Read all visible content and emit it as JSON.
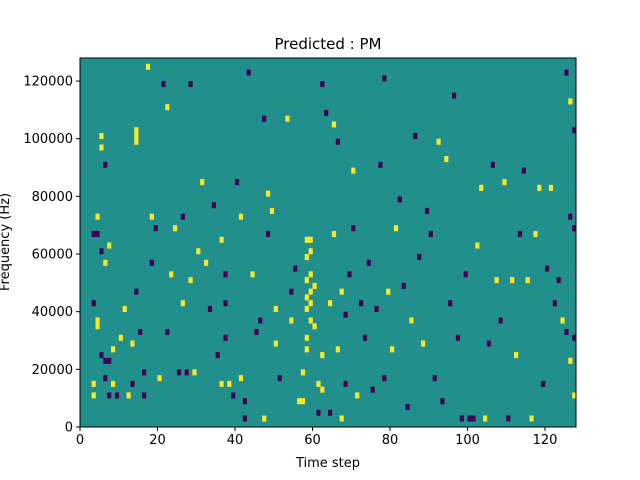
{
  "chart_data": {
    "type": "heatmap",
    "title": "Predicted : PM",
    "xlabel": "Time step",
    "ylabel": "Frequency (Hz)",
    "xlim": [
      0,
      128
    ],
    "ylim": [
      0,
      128000
    ],
    "x_ticks": [
      0,
      20,
      40,
      60,
      80,
      100,
      120
    ],
    "x_tick_labels": [
      "0",
      "20",
      "40",
      "60",
      "80",
      "100",
      "120"
    ],
    "y_ticks": [
      0,
      20000,
      40000,
      60000,
      80000,
      100000,
      120000
    ],
    "y_tick_labels": [
      "0",
      "20000",
      "40000",
      "60000",
      "80000",
      "100000",
      "120000"
    ],
    "colormap": "viridis",
    "value_levels": [
      -1,
      0,
      1
    ],
    "value_colors": {
      "-1": "#440154",
      "0": "#21908d",
      "1": "#fde725"
    },
    "background_value": 0,
    "time_steps": 128,
    "frequency_bins": 64,
    "bin_width_hz": 2000,
    "cells": [
      {
        "t": 5,
        "f": 100000,
        "v": 1
      },
      {
        "t": 5,
        "f": 96000,
        "v": 1
      },
      {
        "t": 6,
        "f": 90000,
        "v": -1
      },
      {
        "t": 4,
        "f": 72000,
        "v": 1
      },
      {
        "t": 3,
        "f": 66000,
        "v": -1
      },
      {
        "t": 4,
        "f": 66000,
        "v": -1
      },
      {
        "t": 7,
        "f": 62000,
        "v": 1
      },
      {
        "t": 5,
        "f": 60000,
        "v": -1
      },
      {
        "t": 6,
        "f": 56000,
        "v": 1
      },
      {
        "t": 3,
        "f": 42000,
        "v": -1
      },
      {
        "t": 4,
        "f": 36000,
        "v": 1
      },
      {
        "t": 4,
        "f": 34000,
        "v": 1
      },
      {
        "t": 5,
        "f": 24000,
        "v": -1
      },
      {
        "t": 6,
        "f": 22000,
        "v": -1
      },
      {
        "t": 7,
        "f": 22000,
        "v": -1
      },
      {
        "t": 8,
        "f": 26000,
        "v": 1
      },
      {
        "t": 3,
        "f": 14000,
        "v": 1
      },
      {
        "t": 3,
        "f": 10000,
        "v": 1
      },
      {
        "t": 6,
        "f": 16000,
        "v": -1
      },
      {
        "t": 7,
        "f": 10000,
        "v": -1
      },
      {
        "t": 8,
        "f": 14000,
        "v": 1
      },
      {
        "t": 9,
        "f": 10000,
        "v": -1
      },
      {
        "t": 10,
        "f": 30000,
        "v": 1
      },
      {
        "t": 11,
        "f": 40000,
        "v": 1
      },
      {
        "t": 12,
        "f": 10000,
        "v": 1
      },
      {
        "t": 13,
        "f": 14000,
        "v": -1
      },
      {
        "t": 13,
        "f": 28000,
        "v": 1
      },
      {
        "t": 14,
        "f": 102000,
        "v": 1
      },
      {
        "t": 14,
        "f": 100000,
        "v": 1
      },
      {
        "t": 14,
        "f": 98000,
        "v": 1
      },
      {
        "t": 14,
        "f": 46000,
        "v": -1
      },
      {
        "t": 15,
        "f": 32000,
        "v": -1
      },
      {
        "t": 16,
        "f": 10000,
        "v": -1
      },
      {
        "t": 16,
        "f": 18000,
        "v": -1
      },
      {
        "t": 17,
        "f": 124000,
        "v": 1
      },
      {
        "t": 18,
        "f": 56000,
        "v": -1
      },
      {
        "t": 18,
        "f": 72000,
        "v": 1
      },
      {
        "t": 19,
        "f": 68000,
        "v": -1
      },
      {
        "t": 20,
        "f": 16000,
        "v": 1
      },
      {
        "t": 21,
        "f": 118000,
        "v": -1
      },
      {
        "t": 22,
        "f": 32000,
        "v": -1
      },
      {
        "t": 22,
        "f": 110000,
        "v": 1
      },
      {
        "t": 23,
        "f": 52000,
        "v": 1
      },
      {
        "t": 24,
        "f": 68000,
        "v": 1
      },
      {
        "t": 25,
        "f": 18000,
        "v": -1
      },
      {
        "t": 26,
        "f": 72000,
        "v": -1
      },
      {
        "t": 26,
        "f": 42000,
        "v": 1
      },
      {
        "t": 27,
        "f": 18000,
        "v": -1
      },
      {
        "t": 28,
        "f": 118000,
        "v": -1
      },
      {
        "t": 28,
        "f": 50000,
        "v": 1
      },
      {
        "t": 29,
        "f": 18000,
        "v": 1
      },
      {
        "t": 30,
        "f": 60000,
        "v": 1
      },
      {
        "t": 31,
        "f": 84000,
        "v": 1
      },
      {
        "t": 32,
        "f": 56000,
        "v": 1
      },
      {
        "t": 33,
        "f": 40000,
        "v": -1
      },
      {
        "t": 34,
        "f": 76000,
        "v": -1
      },
      {
        "t": 35,
        "f": 24000,
        "v": -1
      },
      {
        "t": 36,
        "f": 14000,
        "v": 1
      },
      {
        "t": 36,
        "f": 64000,
        "v": 1
      },
      {
        "t": 37,
        "f": 52000,
        "v": -1
      },
      {
        "t": 37,
        "f": 42000,
        "v": -1
      },
      {
        "t": 37,
        "f": 30000,
        "v": -1
      },
      {
        "t": 38,
        "f": 14000,
        "v": 1
      },
      {
        "t": 39,
        "f": 10000,
        "v": -1
      },
      {
        "t": 40,
        "f": 84000,
        "v": -1
      },
      {
        "t": 41,
        "f": 72000,
        "v": 1
      },
      {
        "t": 41,
        "f": 16000,
        "v": 1
      },
      {
        "t": 42,
        "f": 8000,
        "v": -1
      },
      {
        "t": 42,
        "f": 2000,
        "v": -1
      },
      {
        "t": 43,
        "f": 122000,
        "v": -1
      },
      {
        "t": 44,
        "f": 52000,
        "v": 1
      },
      {
        "t": 45,
        "f": 32000,
        "v": -1
      },
      {
        "t": 46,
        "f": 36000,
        "v": -1
      },
      {
        "t": 47,
        "f": 106000,
        "v": -1
      },
      {
        "t": 47,
        "f": 2000,
        "v": 1
      },
      {
        "t": 48,
        "f": 80000,
        "v": 1
      },
      {
        "t": 48,
        "f": 66000,
        "v": -1
      },
      {
        "t": 49,
        "f": 74000,
        "v": 1
      },
      {
        "t": 50,
        "f": 40000,
        "v": 1
      },
      {
        "t": 50,
        "f": 28000,
        "v": 1
      },
      {
        "t": 51,
        "f": 16000,
        "v": -1
      },
      {
        "t": 53,
        "f": 106000,
        "v": 1
      },
      {
        "t": 54,
        "f": 46000,
        "v": -1
      },
      {
        "t": 54,
        "f": 36000,
        "v": 1
      },
      {
        "t": 55,
        "f": 54000,
        "v": -1
      },
      {
        "t": 56,
        "f": 8000,
        "v": 1
      },
      {
        "t": 57,
        "f": 18000,
        "v": 1
      },
      {
        "t": 57,
        "f": 8000,
        "v": 1
      },
      {
        "t": 58,
        "f": 64000,
        "v": 1
      },
      {
        "t": 58,
        "f": 58000,
        "v": 1
      },
      {
        "t": 58,
        "f": 50000,
        "v": 1
      },
      {
        "t": 58,
        "f": 44000,
        "v": 1
      },
      {
        "t": 58,
        "f": 40000,
        "v": 1
      },
      {
        "t": 58,
        "f": 30000,
        "v": 1
      },
      {
        "t": 58,
        "f": 26000,
        "v": 1
      },
      {
        "t": 59,
        "f": 64000,
        "v": 1
      },
      {
        "t": 59,
        "f": 60000,
        "v": 1
      },
      {
        "t": 59,
        "f": 52000,
        "v": 1
      },
      {
        "t": 59,
        "f": 46000,
        "v": 1
      },
      {
        "t": 59,
        "f": 42000,
        "v": 1
      },
      {
        "t": 59,
        "f": 36000,
        "v": 1
      },
      {
        "t": 60,
        "f": 48000,
        "v": 1
      },
      {
        "t": 60,
        "f": 34000,
        "v": 1
      },
      {
        "t": 61,
        "f": 14000,
        "v": 1
      },
      {
        "t": 61,
        "f": 4000,
        "v": -1
      },
      {
        "t": 62,
        "f": 24000,
        "v": 1
      },
      {
        "t": 62,
        "f": 118000,
        "v": -1
      },
      {
        "t": 62,
        "f": 12000,
        "v": 1
      },
      {
        "t": 63,
        "f": 108000,
        "v": -1
      },
      {
        "t": 64,
        "f": 42000,
        "v": 1
      },
      {
        "t": 64,
        "f": 4000,
        "v": -1
      },
      {
        "t": 65,
        "f": 66000,
        "v": 1
      },
      {
        "t": 65,
        "f": 104000,
        "v": 1
      },
      {
        "t": 66,
        "f": 98000,
        "v": -1
      },
      {
        "t": 66,
        "f": 26000,
        "v": 1
      },
      {
        "t": 67,
        "f": 46000,
        "v": 1
      },
      {
        "t": 67,
        "f": 2000,
        "v": 1
      },
      {
        "t": 68,
        "f": 38000,
        "v": -1
      },
      {
        "t": 68,
        "f": 14000,
        "v": -1
      },
      {
        "t": 69,
        "f": 52000,
        "v": -1
      },
      {
        "t": 70,
        "f": 88000,
        "v": 1
      },
      {
        "t": 70,
        "f": 68000,
        "v": -1
      },
      {
        "t": 71,
        "f": 10000,
        "v": 1
      },
      {
        "t": 72,
        "f": 42000,
        "v": -1
      },
      {
        "t": 73,
        "f": 30000,
        "v": -1
      },
      {
        "t": 74,
        "f": 56000,
        "v": -1
      },
      {
        "t": 75,
        "f": 12000,
        "v": -1
      },
      {
        "t": 76,
        "f": 40000,
        "v": -1
      },
      {
        "t": 77,
        "f": 90000,
        "v": -1
      },
      {
        "t": 78,
        "f": 120000,
        "v": -1
      },
      {
        "t": 78,
        "f": 16000,
        "v": -1
      },
      {
        "t": 79,
        "f": 46000,
        "v": 1
      },
      {
        "t": 80,
        "f": 26000,
        "v": 1
      },
      {
        "t": 81,
        "f": 68000,
        "v": 1
      },
      {
        "t": 82,
        "f": 78000,
        "v": -1
      },
      {
        "t": 83,
        "f": 48000,
        "v": -1
      },
      {
        "t": 84,
        "f": 6000,
        "v": -1
      },
      {
        "t": 85,
        "f": 36000,
        "v": 1
      },
      {
        "t": 86,
        "f": 100000,
        "v": -1
      },
      {
        "t": 87,
        "f": 58000,
        "v": -1
      },
      {
        "t": 88,
        "f": 28000,
        "v": 1
      },
      {
        "t": 89,
        "f": 74000,
        "v": -1
      },
      {
        "t": 90,
        "f": 66000,
        "v": -1
      },
      {
        "t": 91,
        "f": 16000,
        "v": -1
      },
      {
        "t": 92,
        "f": 98000,
        "v": 1
      },
      {
        "t": 93,
        "f": 8000,
        "v": -1
      },
      {
        "t": 94,
        "f": 92000,
        "v": 1
      },
      {
        "t": 95,
        "f": 42000,
        "v": -1
      },
      {
        "t": 96,
        "f": 114000,
        "v": -1
      },
      {
        "t": 97,
        "f": 30000,
        "v": -1
      },
      {
        "t": 98,
        "f": 2000,
        "v": -1
      },
      {
        "t": 99,
        "f": 52000,
        "v": -1
      },
      {
        "t": 100,
        "f": 2000,
        "v": -1
      },
      {
        "t": 101,
        "f": 2000,
        "v": -1
      },
      {
        "t": 102,
        "f": 62000,
        "v": 1
      },
      {
        "t": 103,
        "f": 82000,
        "v": 1
      },
      {
        "t": 104,
        "f": 2000,
        "v": 1
      },
      {
        "t": 105,
        "f": 28000,
        "v": -1
      },
      {
        "t": 106,
        "f": 90000,
        "v": -1
      },
      {
        "t": 107,
        "f": 50000,
        "v": 1
      },
      {
        "t": 108,
        "f": 36000,
        "v": -1
      },
      {
        "t": 109,
        "f": 84000,
        "v": 1
      },
      {
        "t": 110,
        "f": 2000,
        "v": -1
      },
      {
        "t": 111,
        "f": 50000,
        "v": 1
      },
      {
        "t": 112,
        "f": 24000,
        "v": 1
      },
      {
        "t": 113,
        "f": 66000,
        "v": -1
      },
      {
        "t": 114,
        "f": 88000,
        "v": -1
      },
      {
        "t": 115,
        "f": 50000,
        "v": 1
      },
      {
        "t": 116,
        "f": 2000,
        "v": 1
      },
      {
        "t": 117,
        "f": 66000,
        "v": 1
      },
      {
        "t": 118,
        "f": 82000,
        "v": 1
      },
      {
        "t": 119,
        "f": 14000,
        "v": -1
      },
      {
        "t": 120,
        "f": 54000,
        "v": -1
      },
      {
        "t": 121,
        "f": 82000,
        "v": 1
      },
      {
        "t": 122,
        "f": 42000,
        "v": -1
      },
      {
        "t": 123,
        "f": 50000,
        "v": -1
      },
      {
        "t": 124,
        "f": 36000,
        "v": 1
      },
      {
        "t": 125,
        "f": 122000,
        "v": -1
      },
      {
        "t": 125,
        "f": 32000,
        "v": -1
      },
      {
        "t": 126,
        "f": 112000,
        "v": 1
      },
      {
        "t": 126,
        "f": 72000,
        "v": -1
      },
      {
        "t": 126,
        "f": 22000,
        "v": 1
      },
      {
        "t": 127,
        "f": 102000,
        "v": -1
      },
      {
        "t": 127,
        "f": 68000,
        "v": -1
      },
      {
        "t": 127,
        "f": 30000,
        "v": -1
      },
      {
        "t": 127,
        "f": 10000,
        "v": 1
      }
    ]
  }
}
